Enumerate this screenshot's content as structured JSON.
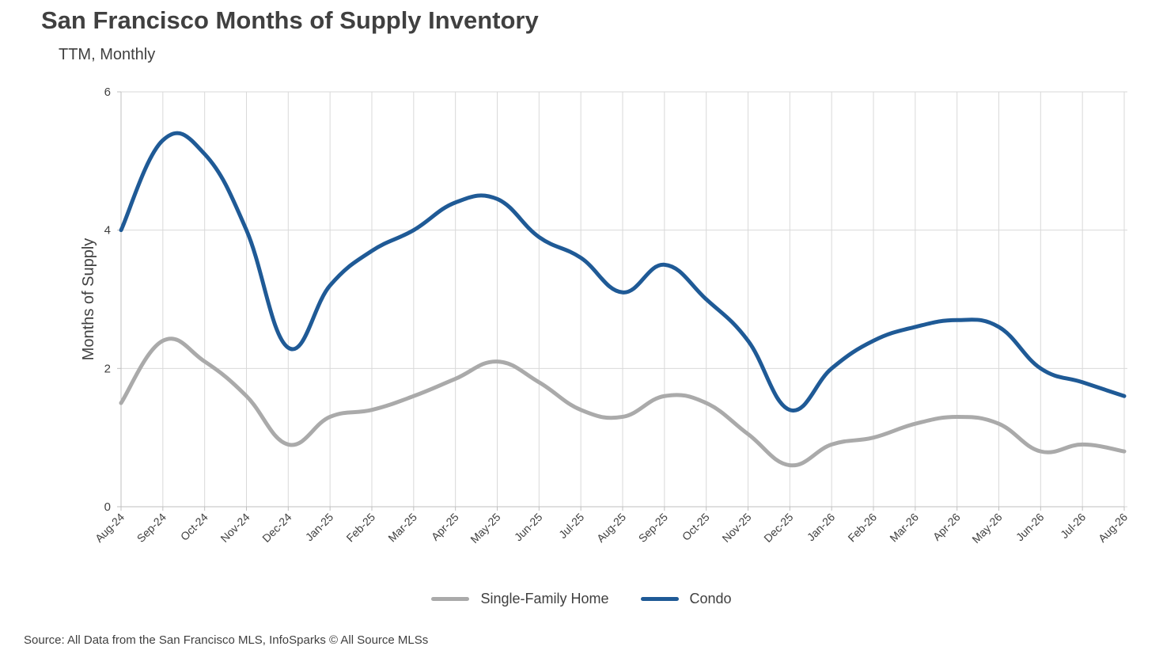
{
  "title": "San Francisco Months of Supply Inventory",
  "subtitle": "TTM, Monthly",
  "source": "Source: All Data from the San Francisco MLS, InfoSparks © All Source MLSs",
  "chart_data": {
    "type": "line",
    "title": "San Francisco Months of Supply Inventory",
    "subtitle": "TTM, Monthly",
    "xlabel": "",
    "ylabel": "Months of Supply",
    "ylim": [
      0,
      6
    ],
    "yticks": [
      0,
      2,
      4,
      6
    ],
    "grid": true,
    "legend_position": "bottom-center",
    "smooth": true,
    "categories": [
      "Aug-24",
      "Sep-24",
      "Oct-24",
      "Nov-24",
      "Dec-24",
      "Jan-25",
      "Feb-25",
      "Mar-25",
      "Apr-25",
      "May-25",
      "Jun-25",
      "Jul-25",
      "Aug-25",
      "Sep-25",
      "Oct-25",
      "Nov-25",
      "Dec-25",
      "Jan-26",
      "Feb-26",
      "Mar-26",
      "Apr-26",
      "May-26",
      "Jun-26",
      "Jul-26",
      "Aug-26"
    ],
    "series": [
      {
        "name": "Single-Family Home",
        "color": "#aaaaaa",
        "values": [
          1.5,
          2.4,
          2.1,
          1.6,
          0.9,
          1.3,
          1.4,
          1.6,
          1.85,
          2.1,
          1.8,
          1.4,
          1.3,
          1.6,
          1.5,
          1.05,
          0.6,
          0.9,
          1.0,
          1.2,
          1.3,
          1.2,
          0.8,
          0.9,
          0.8
        ]
      },
      {
        "name": "Condo",
        "color": "#1f5a96",
        "values": [
          4.0,
          5.3,
          5.1,
          4.0,
          2.3,
          3.2,
          3.7,
          4.0,
          4.4,
          4.45,
          3.9,
          3.6,
          3.1,
          3.5,
          3.0,
          2.4,
          1.4,
          2.0,
          2.4,
          2.6,
          2.7,
          2.6,
          2.0,
          1.8,
          1.6
        ]
      }
    ]
  }
}
